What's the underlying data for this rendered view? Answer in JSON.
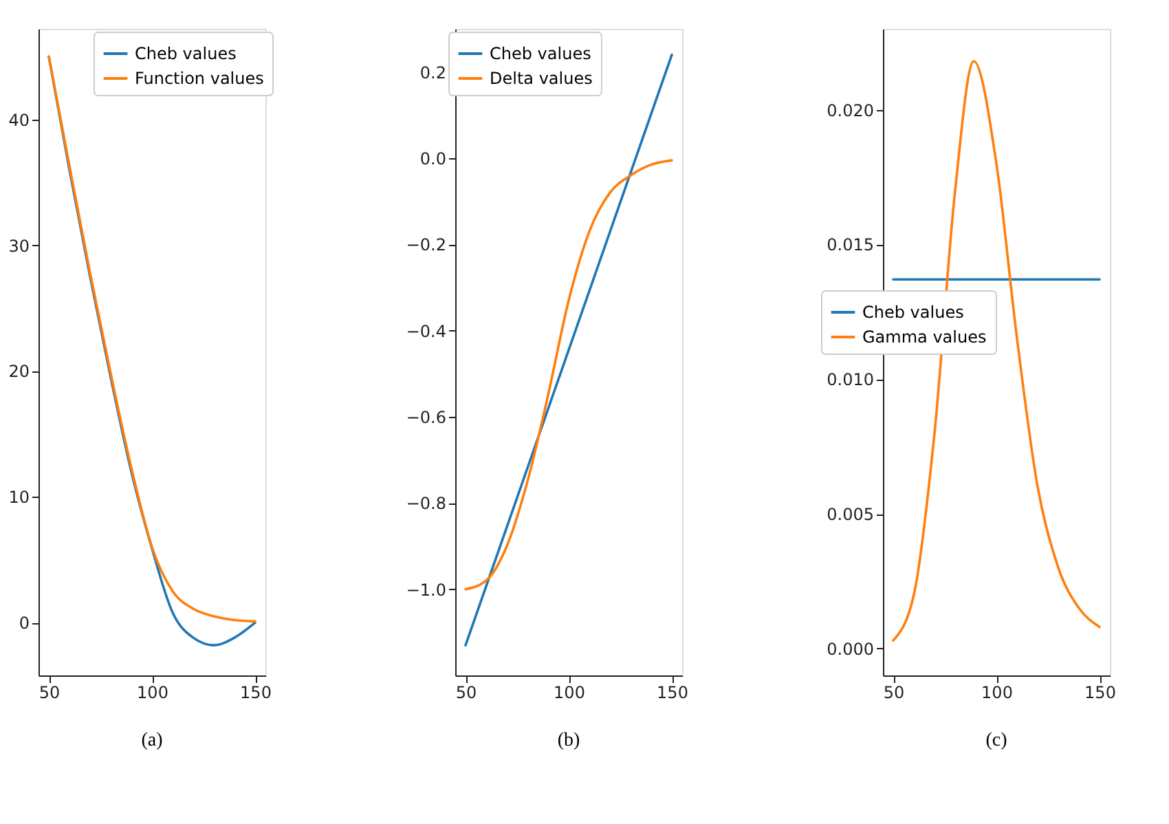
{
  "chart_data": [
    {
      "type": "line",
      "annotations": [
        "(a)"
      ],
      "xlim": [
        45,
        155
      ],
      "ylim": [
        -4.2,
        47.2
      ],
      "xticks": [
        50,
        100,
        150
      ],
      "yticks": [
        0,
        10,
        20,
        30,
        40
      ],
      "grid": false,
      "legend": "top right",
      "line_style": "solid",
      "series": [
        {
          "name": "Cheb values",
          "color": "#1f77b4",
          "x": [
            50,
            60,
            70,
            80,
            90,
            100,
            110,
            120,
            130,
            140,
            150
          ],
          "values": [
            45,
            36,
            27.5,
            19.5,
            12,
            5.9,
            0.8,
            -1.2,
            -1.8,
            -1.2,
            0
          ]
        },
        {
          "name": "Function values",
          "color": "#ff7f0e",
          "x": [
            50,
            60,
            70,
            80,
            90,
            100,
            110,
            120,
            130,
            140,
            150
          ],
          "values": [
            45,
            36.3,
            27.8,
            19.8,
            12.3,
            6,
            2.5,
            1.1,
            0.5,
            0.2,
            0.1
          ]
        }
      ]
    },
    {
      "type": "line",
      "annotations": [
        "(b)"
      ],
      "xlim": [
        45,
        155
      ],
      "ylim": [
        -1.2,
        0.3
      ],
      "xticks": [
        50,
        100,
        150
      ],
      "yticks": [
        {
          "value": -1,
          "label": "−1.0"
        },
        {
          "value": -0.8,
          "label": "−0.8"
        },
        {
          "value": -0.6,
          "label": "−0.6"
        },
        {
          "value": -0.4,
          "label": "−0.4"
        },
        {
          "value": -0.2,
          "label": "−0.2"
        },
        {
          "value": 0,
          "label": "0.0"
        },
        0.2
      ],
      "grid": false,
      "legend": "top",
      "line_style": "solid",
      "series": [
        {
          "name": "Cheb values",
          "color": "#1f77b4",
          "x": [
            50,
            150
          ],
          "values": [
            -1.13,
            0.24
          ]
        },
        {
          "name": "Delta values",
          "color": "#ff7f0e",
          "x": [
            50,
            60,
            70,
            80,
            90,
            100,
            110,
            120,
            130,
            140,
            150
          ],
          "values": [
            -1.0,
            -0.98,
            -0.9,
            -0.75,
            -0.55,
            -0.33,
            -0.17,
            -0.08,
            -0.04,
            -0.015,
            -0.005
          ]
        }
      ]
    },
    {
      "type": "line",
      "annotations": [
        "(c)"
      ],
      "xlim": [
        45,
        155
      ],
      "ylim": [
        -0.001,
        0.023
      ],
      "xticks": [
        50,
        100,
        150
      ],
      "yticks": [
        {
          "value": 0,
          "label": "0.000"
        },
        0.005,
        {
          "value": 0.01,
          "label": "0.010"
        },
        0.015,
        {
          "value": 0.02,
          "label": "0.020"
        }
      ],
      "grid": false,
      "legend": "left",
      "line_style": "solid",
      "series": [
        {
          "name": "Cheb values",
          "color": "#1f77b4",
          "x": [
            50,
            150
          ],
          "values": [
            0.0137,
            0.0137
          ]
        },
        {
          "name": "Gamma values",
          "color": "#ff7f0e",
          "x": [
            50,
            60,
            70,
            80,
            89,
            100,
            110,
            120,
            130,
            140,
            150
          ],
          "values": [
            0.0003,
            0.002,
            0.008,
            0.017,
            0.0218,
            0.018,
            0.0115,
            0.006,
            0.003,
            0.0015,
            0.0008
          ]
        }
      ]
    }
  ]
}
